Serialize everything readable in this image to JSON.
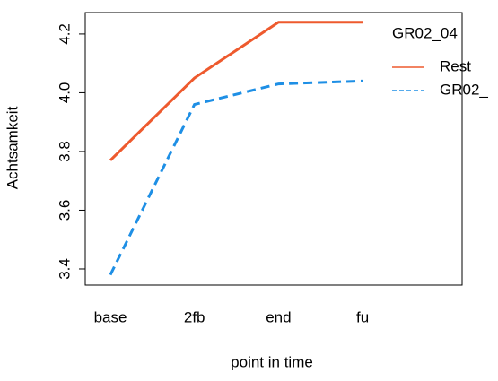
{
  "chart_data": {
    "type": "line",
    "x_label": "point in time",
    "y_label": "Achtsamkeit",
    "categories": [
      "base",
      "2fb",
      "end",
      "fu"
    ],
    "legend_title": "GR02_04",
    "series": [
      {
        "name": "Rest",
        "color": "#ee5a2e",
        "dashed": false,
        "values": [
          3.77,
          4.05,
          4.24,
          4.24
        ]
      },
      {
        "name": "GR02_",
        "color": "#1e8fe5",
        "dashed": true,
        "values": [
          3.38,
          3.96,
          4.03,
          4.04
        ]
      }
    ],
    "ylim": [
      3.345,
      4.273
    ],
    "yticks": [
      {
        "value": 3.4,
        "label": "3.4"
      },
      {
        "value": 3.6,
        "label": "3.6"
      },
      {
        "value": 3.8,
        "label": "3.8"
      },
      {
        "value": 4.0,
        "label": "4.0"
      },
      {
        "value": 4.2,
        "label": "4.2"
      }
    ],
    "grid": false,
    "legend": "right"
  }
}
